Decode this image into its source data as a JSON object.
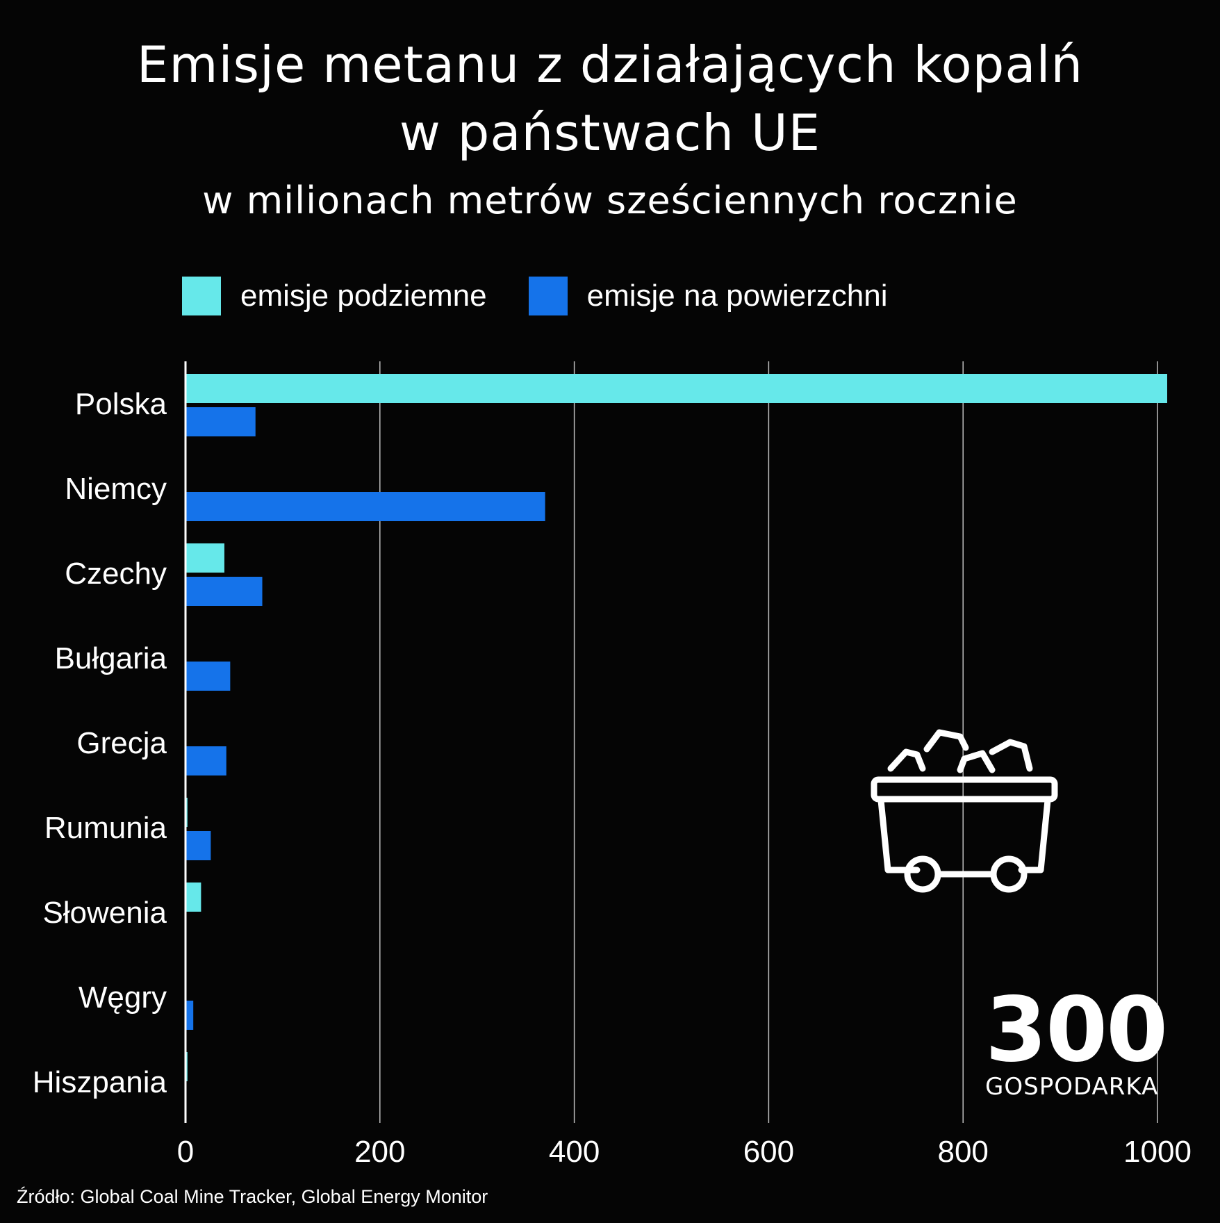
{
  "chart_data": {
    "type": "bar",
    "orientation": "horizontal",
    "title_line1": "Emisje metanu z działających kopalń",
    "title_line2": "w państwach UE",
    "subtitle": "w milionach metrów sześciennych rocznie",
    "categories": [
      "Polska",
      "Niemcy",
      "Czechy",
      "Bułgaria",
      "Grecja",
      "Rumunia",
      "Słowenia",
      "Węgry",
      "Hiszpania"
    ],
    "series": [
      {
        "name": "emisje podziemne",
        "color": "#66E8EA",
        "values": [
          1010,
          0,
          40,
          0,
          0,
          2,
          16,
          0,
          2
        ]
      },
      {
        "name": "emisje na powierzchni",
        "color": "#1573EA",
        "values": [
          72,
          370,
          79,
          46,
          42,
          26,
          0,
          8,
          0
        ]
      }
    ],
    "xlim": [
      0,
      1000
    ],
    "x_ticks": [
      "0",
      "200",
      "400",
      "600",
      "800",
      "1000"
    ],
    "grid": true,
    "legend_position": "top"
  },
  "source": "Źródło: Global Coal Mine Tracker, Global Energy Monitor",
  "logo": {
    "number": "300",
    "word": "GOSPODARKA"
  },
  "icons": {
    "decoration": "mine-cart-icon"
  }
}
